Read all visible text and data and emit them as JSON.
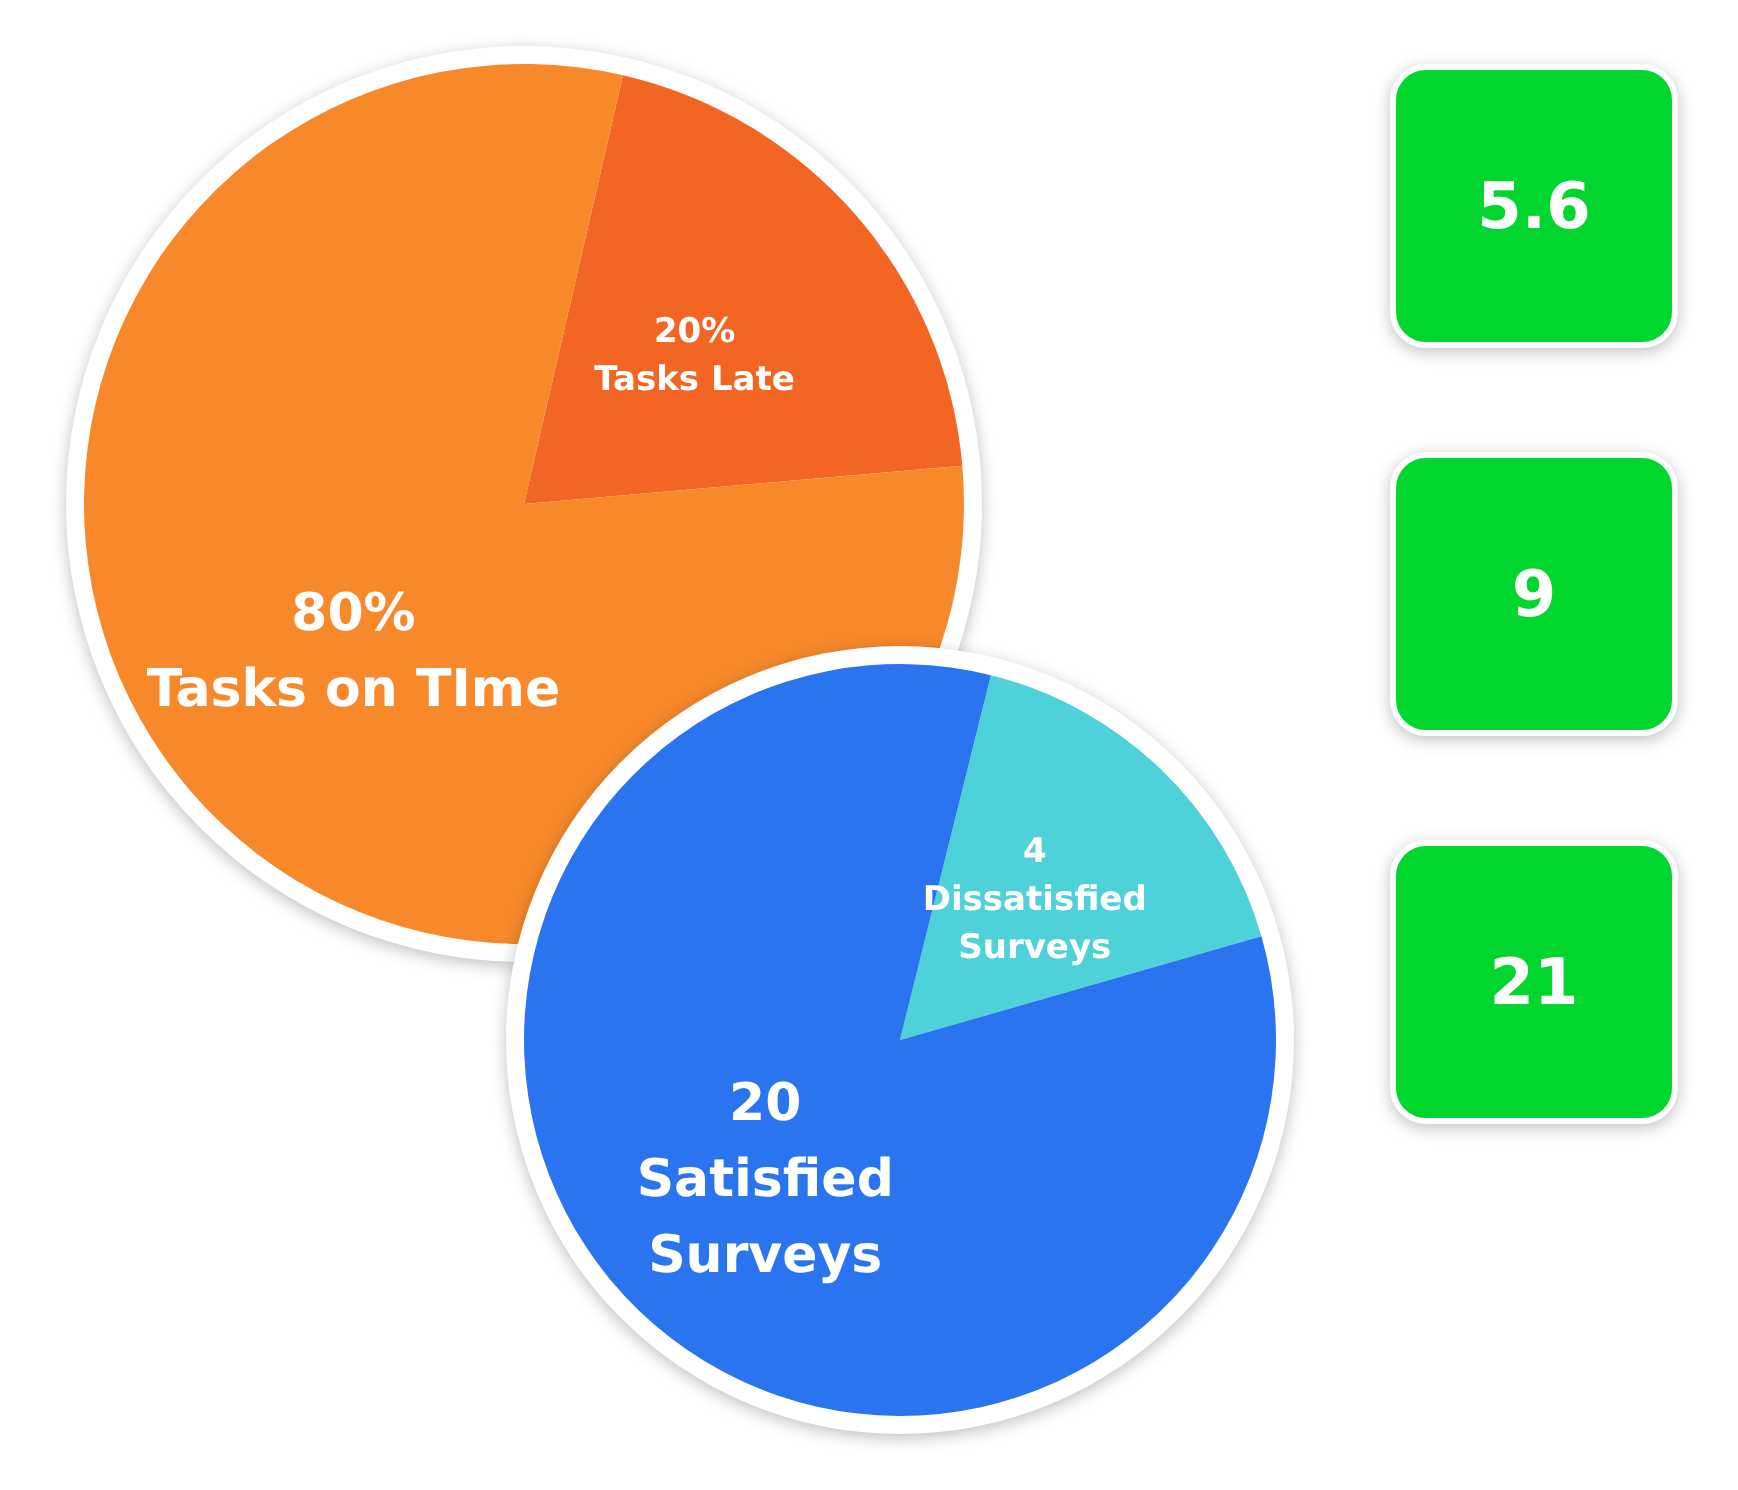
{
  "chart_data": [
    {
      "type": "pie",
      "categories": [
        "Tasks Late",
        "Tasks on TIme"
      ],
      "values": [
        20,
        80
      ],
      "colors": [
        "#f26522",
        "#f7892b"
      ],
      "value_labels": [
        "20%",
        "80%"
      ]
    },
    {
      "type": "pie",
      "categories": [
        "Dissatisfied Surveys",
        "Satisfied Surveys"
      ],
      "values": [
        4,
        20
      ],
      "colors": [
        "#4fd1d9",
        "#2a74f0"
      ],
      "value_labels": [
        "4",
        "20"
      ]
    },
    {
      "type": "other",
      "annotations": [
        "5.6",
        "9",
        "21"
      ]
    }
  ]
}
